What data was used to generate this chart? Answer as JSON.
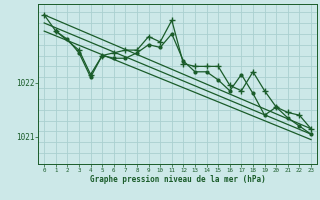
{
  "bg_color": "#cce8e8",
  "grid_color": "#aad0d0",
  "line_color": "#1a5c2a",
  "xlabel": "Graphe pression niveau de la mer (hPa)",
  "yticks": [
    1021,
    1022
  ],
  "xticks": [
    0,
    1,
    2,
    3,
    4,
    5,
    6,
    7,
    8,
    9,
    10,
    11,
    12,
    13,
    14,
    15,
    16,
    17,
    18,
    19,
    20,
    21,
    22,
    23
  ],
  "xlim": [
    -0.5,
    23.5
  ],
  "ylim": [
    1020.5,
    1023.45
  ],
  "series": [
    {
      "x": [
        0,
        23
      ],
      "y": [
        1023.25,
        1021.15
      ],
      "marker": null,
      "lw": 0.9
    },
    {
      "x": [
        0,
        23
      ],
      "y": [
        1023.1,
        1021.05
      ],
      "marker": null,
      "lw": 0.9
    },
    {
      "x": [
        0,
        23
      ],
      "y": [
        1022.95,
        1020.95
      ],
      "marker": null,
      "lw": 0.9
    },
    {
      "x": [
        0,
        1,
        3,
        4,
        5,
        6,
        7,
        8,
        9,
        10,
        11,
        12,
        13,
        14,
        15,
        16,
        17,
        18,
        19,
        20,
        21,
        22,
        23
      ],
      "y": [
        1023.25,
        1022.95,
        1022.6,
        1022.15,
        1022.5,
        1022.55,
        1022.6,
        1022.6,
        1022.85,
        1022.75,
        1023.15,
        1022.35,
        1022.3,
        1022.3,
        1022.3,
        1021.95,
        1021.85,
        1022.2,
        1021.85,
        1021.55,
        1021.45,
        1021.4,
        1021.15
      ],
      "marker": "+",
      "markersize": 4,
      "lw": 0.9
    },
    {
      "x": [
        1,
        2,
        3,
        4,
        5,
        6,
        7,
        8,
        9,
        10,
        11,
        12,
        13,
        14,
        15,
        16,
        17,
        18,
        19,
        20,
        21,
        22,
        23
      ],
      "y": [
        1022.95,
        1022.8,
        1022.55,
        1022.1,
        1022.5,
        1022.45,
        1022.45,
        1022.55,
        1022.7,
        1022.65,
        1022.9,
        1022.4,
        1022.2,
        1022.2,
        1022.05,
        1021.85,
        1022.15,
        1021.8,
        1021.4,
        1021.55,
        1021.35,
        1021.2,
        1021.05
      ],
      "marker": ".",
      "markersize": 4,
      "lw": 0.9
    }
  ]
}
